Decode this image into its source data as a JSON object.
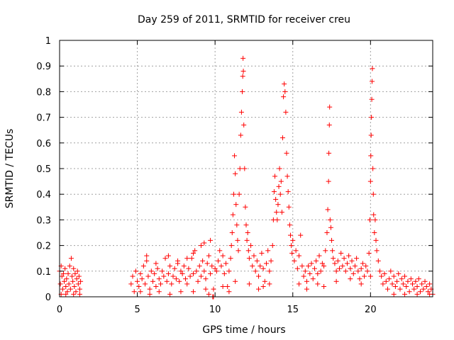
{
  "chart_data": {
    "type": "scatter",
    "title": "Day 259 of 2011, SRMTID for receiver creu",
    "xlabel": "GPS time / hours",
    "ylabel": "SRMTID / TECUs",
    "xlim": [
      0,
      24
    ],
    "ylim": [
      0,
      1
    ],
    "x_ticks": [
      0,
      5,
      10,
      15,
      20
    ],
    "x_tick_labels": [
      "0",
      "5",
      "10",
      "15",
      "20"
    ],
    "y_ticks": [
      0,
      0.1,
      0.2,
      0.3,
      0.4,
      0.5,
      0.6,
      0.7,
      0.8,
      0.9,
      1
    ],
    "y_tick_labels": [
      "0",
      "0.1",
      "0.2",
      "0.3",
      "0.4",
      "0.5",
      "0.6",
      "0.7",
      "0.8",
      "0.9",
      "1"
    ],
    "grid": true,
    "marker": "+",
    "color": "#ff0000",
    "series": [
      {
        "name": "SRMTID",
        "points": [
          [
            0.0,
            0.1
          ],
          [
            0.05,
            0.05
          ],
          [
            0.1,
            0.12
          ],
          [
            0.15,
            0.08
          ],
          [
            0.2,
            0.03
          ],
          [
            0.25,
            0.09
          ],
          [
            0.3,
            0.06
          ],
          [
            0.35,
            0.11
          ],
          [
            0.4,
            0.04
          ],
          [
            0.45,
            0.07
          ],
          [
            0.5,
            0.02
          ],
          [
            0.55,
            0.09
          ],
          [
            0.6,
            0.05
          ],
          [
            0.65,
            0.12
          ],
          [
            0.7,
            0.03
          ],
          [
            0.75,
            0.15
          ],
          [
            0.8,
            0.08
          ],
          [
            0.85,
            0.06
          ],
          [
            0.9,
            0.11
          ],
          [
            0.95,
            0.04
          ],
          [
            1.0,
            0.09
          ],
          [
            1.05,
            0.02
          ],
          [
            1.1,
            0.07
          ],
          [
            1.15,
            0.1
          ],
          [
            1.2,
            0.05
          ],
          [
            1.25,
            0.08
          ],
          [
            1.3,
            0.03
          ],
          [
            1.35,
            0.06
          ],
          [
            0.1,
            0.01
          ],
          [
            0.4,
            0.01
          ],
          [
            0.9,
            0.01
          ],
          [
            1.3,
            0.01
          ],
          [
            4.6,
            0.05
          ],
          [
            4.7,
            0.08
          ],
          [
            4.8,
            0.02
          ],
          [
            4.9,
            0.1
          ],
          [
            5.0,
            0.06
          ],
          [
            5.1,
            0.04
          ],
          [
            5.2,
            0.09
          ],
          [
            5.3,
            0.07
          ],
          [
            5.4,
            0.12
          ],
          [
            5.5,
            0.05
          ],
          [
            5.6,
            0.14
          ],
          [
            5.7,
            0.08
          ],
          [
            5.8,
            0.03
          ],
          [
            5.9,
            0.1
          ],
          [
            6.0,
            0.06
          ],
          [
            6.1,
            0.09
          ],
          [
            6.2,
            0.04
          ],
          [
            6.3,
            0.11
          ],
          [
            6.4,
            0.07
          ],
          [
            6.5,
            0.05
          ],
          [
            6.6,
            0.1
          ],
          [
            6.7,
            0.08
          ],
          [
            6.8,
            0.15
          ],
          [
            6.9,
            0.06
          ],
          [
            7.0,
            0.09
          ],
          [
            7.1,
            0.12
          ],
          [
            7.2,
            0.05
          ],
          [
            7.3,
            0.08
          ],
          [
            7.4,
            0.11
          ],
          [
            7.5,
            0.07
          ],
          [
            7.6,
            0.13
          ],
          [
            7.7,
            0.06
          ],
          [
            7.8,
            0.1
          ],
          [
            7.9,
            0.09
          ],
          [
            8.0,
            0.12
          ],
          [
            8.1,
            0.07
          ],
          [
            8.2,
            0.05
          ],
          [
            8.3,
            0.11
          ],
          [
            8.4,
            0.08
          ],
          [
            8.5,
            0.15
          ],
          [
            8.6,
            0.09
          ],
          [
            8.7,
            0.18
          ],
          [
            8.8,
            0.1
          ],
          [
            8.9,
            0.06
          ],
          [
            9.0,
            0.12
          ],
          [
            9.1,
            0.08
          ],
          [
            9.2,
            0.14
          ],
          [
            9.3,
            0.1
          ],
          [
            9.4,
            0.07
          ],
          [
            9.5,
            0.13
          ],
          [
            9.6,
            0.16
          ],
          [
            9.7,
            0.09
          ],
          [
            9.8,
            0.12
          ],
          [
            9.9,
            0.03
          ],
          [
            10.0,
            0.11
          ],
          [
            5.2,
            0.02
          ],
          [
            5.8,
            0.01
          ],
          [
            6.4,
            0.02
          ],
          [
            7.1,
            0.01
          ],
          [
            7.8,
            0.02
          ],
          [
            8.6,
            0.02
          ],
          [
            9.4,
            0.03
          ],
          [
            9.6,
            0.01
          ],
          [
            9.7,
            0.22
          ],
          [
            9.85,
            0.0
          ],
          [
            9.9,
            0.0
          ],
          [
            5.6,
            0.16
          ],
          [
            6.2,
            0.13
          ],
          [
            7.0,
            0.16
          ],
          [
            7.6,
            0.14
          ],
          [
            8.2,
            0.15
          ],
          [
            8.6,
            0.17
          ],
          [
            9.1,
            0.2
          ],
          [
            9.3,
            0.21
          ],
          [
            10.1,
            0.1
          ],
          [
            10.2,
            0.14
          ],
          [
            10.3,
            0.18
          ],
          [
            10.4,
            0.12
          ],
          [
            10.5,
            0.16
          ],
          [
            10.6,
            0.09
          ],
          [
            10.7,
            0.13
          ],
          [
            10.8,
            0.04
          ],
          [
            10.9,
            0.1
          ],
          [
            11.0,
            0.15
          ],
          [
            11.05,
            0.2
          ],
          [
            11.1,
            0.25
          ],
          [
            11.15,
            0.32
          ],
          [
            11.2,
            0.4
          ],
          [
            11.25,
            0.55
          ],
          [
            11.3,
            0.48
          ],
          [
            11.35,
            0.36
          ],
          [
            11.4,
            0.28
          ],
          [
            11.45,
            0.22
          ],
          [
            11.5,
            0.18
          ],
          [
            11.55,
            0.4
          ],
          [
            11.6,
            0.5
          ],
          [
            11.65,
            0.63
          ],
          [
            11.7,
            0.72
          ],
          [
            11.75,
            0.8
          ],
          [
            11.78,
            0.86
          ],
          [
            11.8,
            0.93
          ],
          [
            11.82,
            0.88
          ],
          [
            11.85,
            0.67
          ],
          [
            11.9,
            0.5
          ],
          [
            11.95,
            0.35
          ],
          [
            12.0,
            0.28
          ],
          [
            12.05,
            0.22
          ],
          [
            12.1,
            0.25
          ],
          [
            12.15,
            0.18
          ],
          [
            12.2,
            0.15
          ],
          [
            12.3,
            0.2
          ],
          [
            12.4,
            0.12
          ],
          [
            12.5,
            0.16
          ],
          [
            12.6,
            0.1
          ],
          [
            12.7,
            0.14
          ],
          [
            12.8,
            0.08
          ],
          [
            12.9,
            0.12
          ],
          [
            13.0,
            0.17
          ],
          [
            13.1,
            0.11
          ],
          [
            13.2,
            0.06
          ],
          [
            13.3,
            0.13
          ],
          [
            13.4,
            0.18
          ],
          [
            13.5,
            0.1
          ],
          [
            13.6,
            0.14
          ],
          [
            13.7,
            0.2
          ],
          [
            13.75,
            0.3
          ],
          [
            13.8,
            0.41
          ],
          [
            13.85,
            0.47
          ],
          [
            13.9,
            0.38
          ],
          [
            13.95,
            0.33
          ],
          [
            14.0,
            0.3
          ],
          [
            14.05,
            0.36
          ],
          [
            14.1,
            0.43
          ],
          [
            14.15,
            0.5
          ],
          [
            14.2,
            0.4
          ],
          [
            14.25,
            0.45
          ],
          [
            14.3,
            0.33
          ],
          [
            14.35,
            0.62
          ],
          [
            14.4,
            0.78
          ],
          [
            14.45,
            0.83
          ],
          [
            14.5,
            0.8
          ],
          [
            14.55,
            0.72
          ],
          [
            14.6,
            0.56
          ],
          [
            14.65,
            0.47
          ],
          [
            14.7,
            0.41
          ],
          [
            14.75,
            0.35
          ],
          [
            14.8,
            0.28
          ],
          [
            14.85,
            0.24
          ],
          [
            14.9,
            0.2
          ],
          [
            14.95,
            0.17
          ],
          [
            15.0,
            0.22
          ],
          [
            15.1,
            0.14
          ],
          [
            15.2,
            0.18
          ],
          [
            15.3,
            0.11
          ],
          [
            15.4,
            0.16
          ],
          [
            15.5,
            0.24
          ],
          [
            15.6,
            0.12
          ],
          [
            15.7,
            0.08
          ],
          [
            15.8,
            0.1
          ],
          [
            15.9,
            0.06
          ],
          [
            16.0,
            0.12
          ],
          [
            16.1,
            0.09
          ],
          [
            16.2,
            0.13
          ],
          [
            16.3,
            0.07
          ],
          [
            16.4,
            0.11
          ],
          [
            16.5,
            0.14
          ],
          [
            16.6,
            0.09
          ],
          [
            16.7,
            0.16
          ],
          [
            16.8,
            0.1
          ],
          [
            16.9,
            0.13
          ],
          [
            17.0,
            0.12
          ],
          [
            17.1,
            0.18
          ],
          [
            17.2,
            0.25
          ],
          [
            17.25,
            0.34
          ],
          [
            17.3,
            0.45
          ],
          [
            17.32,
            0.56
          ],
          [
            17.35,
            0.67
          ],
          [
            17.37,
            0.74
          ],
          [
            17.4,
            0.3
          ],
          [
            17.45,
            0.27
          ],
          [
            17.5,
            0.22
          ],
          [
            17.55,
            0.18
          ],
          [
            17.6,
            0.15
          ],
          [
            17.7,
            0.13
          ],
          [
            17.8,
            0.1
          ],
          [
            17.9,
            0.14
          ],
          [
            18.0,
            0.11
          ],
          [
            18.1,
            0.17
          ],
          [
            18.2,
            0.12
          ],
          [
            18.3,
            0.15
          ],
          [
            18.4,
            0.1
          ],
          [
            18.5,
            0.13
          ],
          [
            18.6,
            0.16
          ],
          [
            18.7,
            0.11
          ],
          [
            18.8,
            0.14
          ],
          [
            18.9,
            0.09
          ],
          [
            19.0,
            0.12
          ],
          [
            19.1,
            0.15
          ],
          [
            19.2,
            0.1
          ],
          [
            19.3,
            0.07
          ],
          [
            19.4,
            0.11
          ],
          [
            19.5,
            0.13
          ],
          [
            19.6,
            0.08
          ],
          [
            19.7,
            0.12
          ],
          [
            19.8,
            0.1
          ],
          [
            19.9,
            0.17
          ],
          [
            19.95,
            0.3
          ],
          [
            20.0,
            0.45
          ],
          [
            20.02,
            0.55
          ],
          [
            20.04,
            0.63
          ],
          [
            20.06,
            0.7
          ],
          [
            20.08,
            0.77
          ],
          [
            20.1,
            0.84
          ],
          [
            20.12,
            0.89
          ],
          [
            20.15,
            0.5
          ],
          [
            20.18,
            0.4
          ],
          [
            20.2,
            0.32
          ],
          [
            20.25,
            0.25
          ],
          [
            20.3,
            0.3
          ],
          [
            20.35,
            0.22
          ],
          [
            20.4,
            0.18
          ],
          [
            20.5,
            0.14
          ],
          [
            20.6,
            0.1
          ],
          [
            10.5,
            0.04
          ],
          [
            10.9,
            0.02
          ],
          [
            11.3,
            0.06
          ],
          [
            12.2,
            0.05
          ],
          [
            12.8,
            0.03
          ],
          [
            13.1,
            0.04
          ],
          [
            13.5,
            0.05
          ],
          [
            15.4,
            0.05
          ],
          [
            15.9,
            0.03
          ],
          [
            16.6,
            0.05
          ],
          [
            17.0,
            0.04
          ],
          [
            17.8,
            0.06
          ],
          [
            18.7,
            0.07
          ],
          [
            19.4,
            0.05
          ],
          [
            20.0,
            0.08
          ],
          [
            20.7,
            0.08
          ],
          [
            20.8,
            0.05
          ],
          [
            20.9,
            0.09
          ],
          [
            21.0,
            0.06
          ],
          [
            21.1,
            0.03
          ],
          [
            21.2,
            0.07
          ],
          [
            21.3,
            0.1
          ],
          [
            21.4,
            0.05
          ],
          [
            21.5,
            0.08
          ],
          [
            21.6,
            0.04
          ],
          [
            21.7,
            0.06
          ],
          [
            21.8,
            0.09
          ],
          [
            21.9,
            0.03
          ],
          [
            22.0,
            0.07
          ],
          [
            22.1,
            0.05
          ],
          [
            22.2,
            0.08
          ],
          [
            22.3,
            0.04
          ],
          [
            22.4,
            0.06
          ],
          [
            22.5,
            0.02
          ],
          [
            22.6,
            0.07
          ],
          [
            22.7,
            0.05
          ],
          [
            22.8,
            0.03
          ],
          [
            22.9,
            0.06
          ],
          [
            23.0,
            0.04
          ],
          [
            23.1,
            0.07
          ],
          [
            23.2,
            0.02
          ],
          [
            23.3,
            0.05
          ],
          [
            23.4,
            0.03
          ],
          [
            23.5,
            0.06
          ],
          [
            23.6,
            0.04
          ],
          [
            23.7,
            0.02
          ],
          [
            23.8,
            0.05
          ],
          [
            23.9,
            0.03
          ],
          [
            24.0,
            0.01
          ],
          [
            21.5,
            0.01
          ],
          [
            22.2,
            0.01
          ],
          [
            23.0,
            0.01
          ],
          [
            23.8,
            0.01
          ]
        ]
      }
    ]
  }
}
